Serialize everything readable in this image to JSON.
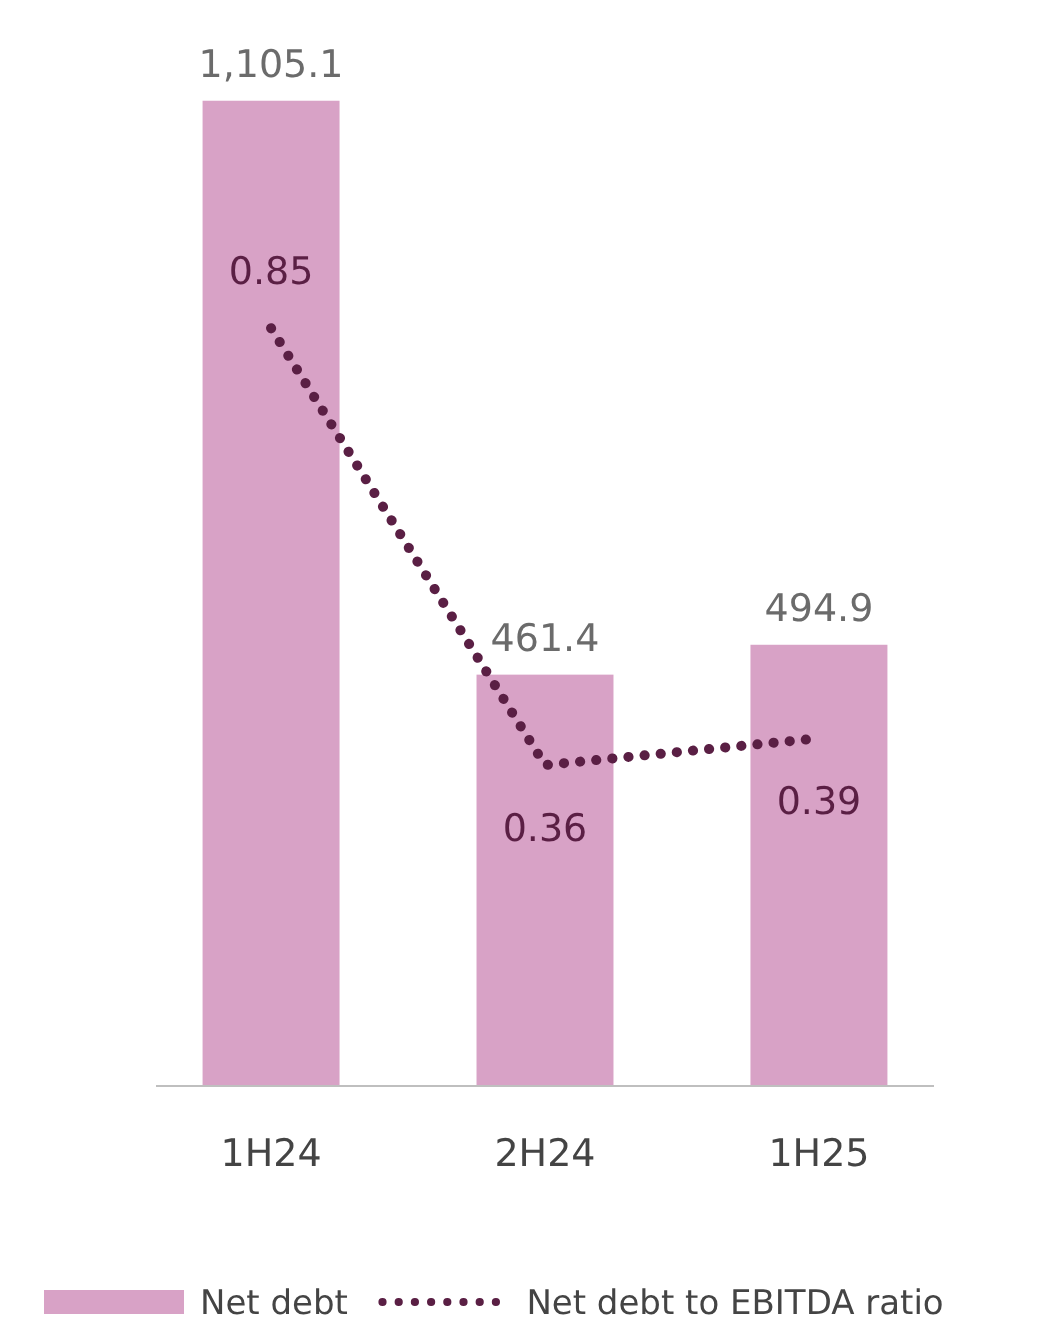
{
  "chart_data": {
    "type": "bar",
    "categories": [
      "1H24",
      "2H24",
      "1H25"
    ],
    "series": [
      {
        "name": "Net debt",
        "color": "#d8a2c6",
        "values": [
          1105.1,
          461.4,
          494.9
        ],
        "value_labels": [
          "1,105.1",
          "461.4",
          "494.9"
        ]
      },
      {
        "name": "Net debt to EBITDA ratio",
        "type": "line",
        "axis": "y2",
        "color": "#5a1f44",
        "values": [
          0.85,
          0.36,
          0.39
        ],
        "value_labels": [
          "0.85",
          "0.36",
          "0.39"
        ],
        "line_style": "dotted"
      }
    ],
    "tick_labels": "x",
    "legend": "bottom"
  }
}
